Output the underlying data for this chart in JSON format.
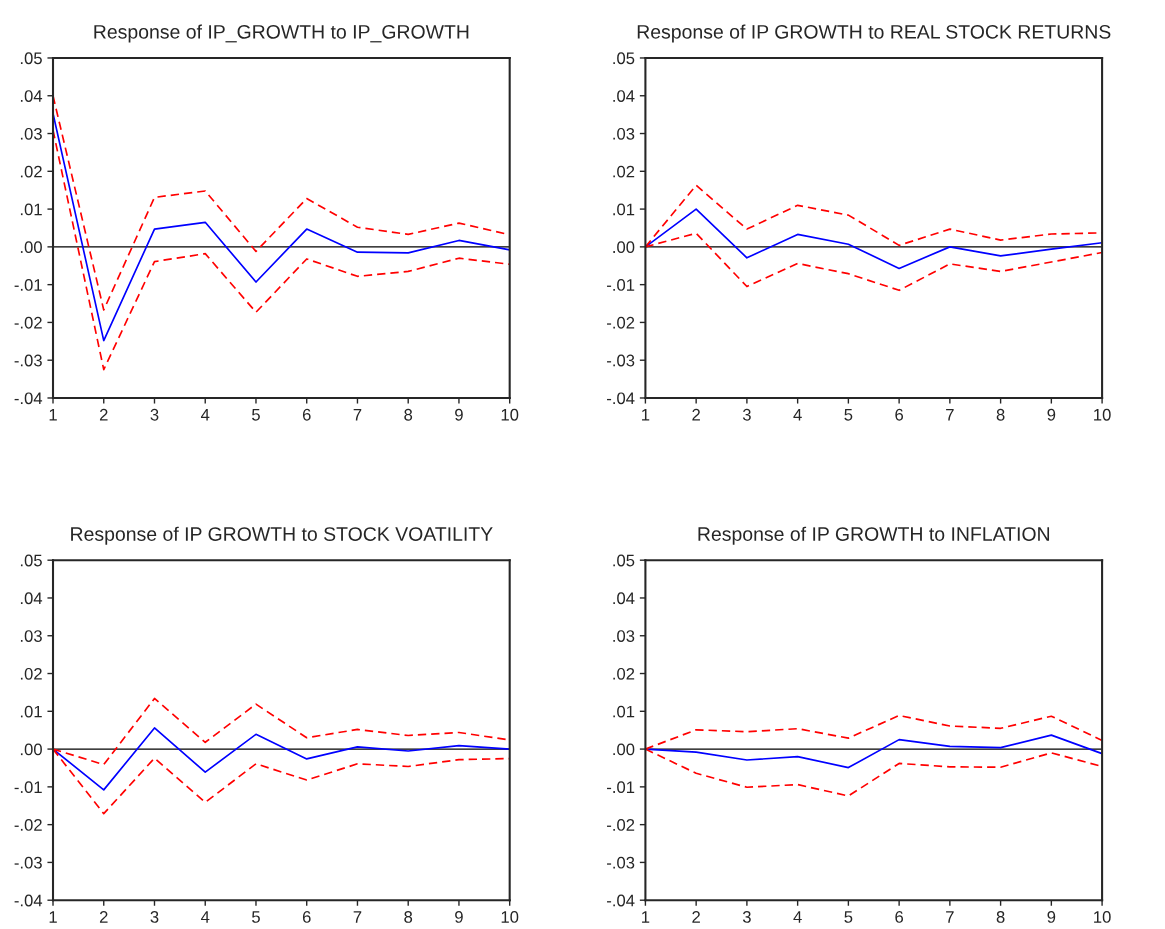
{
  "chart_data": [
    {
      "type": "line",
      "title": "Response of IP_GROWTH to IP_GROWTH",
      "x": [
        1,
        2,
        3,
        4,
        5,
        6,
        7,
        8,
        9,
        10
      ],
      "xlim": [
        1,
        10
      ],
      "xticks": [
        1,
        2,
        3,
        4,
        5,
        6,
        7,
        8,
        9,
        10
      ],
      "ylim": [
        -0.04,
        0.05
      ],
      "yticks": [
        {
          "value": -0.04,
          "label": "-.04"
        },
        {
          "value": -0.03,
          "label": "-.03"
        },
        {
          "value": -0.02,
          "label": "-.02"
        },
        {
          "value": -0.01,
          "label": "-.01"
        },
        {
          "value": 0,
          "label": ".00"
        },
        {
          "value": 0.01,
          "label": ".01"
        },
        {
          "value": 0.02,
          "label": ".02"
        },
        {
          "value": 0.03,
          "label": ".03"
        },
        {
          "value": 0.04,
          "label": ".04"
        },
        {
          "value": 0.05,
          "label": ".05"
        }
      ],
      "grid": false,
      "legend": false,
      "ref_lines": [
        {
          "axis": "y",
          "value": 0,
          "color": "#000000"
        }
      ],
      "series": [
        {
          "color": "#0000ff",
          "line_style": "solid",
          "values": [
            0.0353,
            -0.0248,
            0.0047,
            0.0065,
            -0.0093,
            0.0047,
            -0.0014,
            -0.0016,
            0.0017,
            -0.0008
          ]
        },
        {
          "color": "#ff0000",
          "line_style": "dashed",
          "values": [
            0.04,
            -0.0167,
            0.0131,
            0.0148,
            -0.0012,
            0.0128,
            0.0052,
            0.0033,
            0.0063,
            0.0032
          ]
        },
        {
          "color": "#ff0000",
          "line_style": "dashed",
          "values": [
            0.0309,
            -0.0325,
            -0.0039,
            -0.0018,
            -0.0173,
            -0.0032,
            -0.0078,
            -0.0065,
            -0.003,
            -0.0046
          ]
        }
      ]
    },
    {
      "type": "line",
      "title": "Response of IP GROWTH to REAL STOCK RETURNS",
      "x": [
        1,
        2,
        3,
        4,
        5,
        6,
        7,
        8,
        9,
        10
      ],
      "xlim": [
        1,
        10
      ],
      "xticks": [
        1,
        2,
        3,
        4,
        5,
        6,
        7,
        8,
        9,
        10
      ],
      "ylim": [
        -0.04,
        0.05
      ],
      "yticks": [
        {
          "value": -0.04,
          "label": "-.04"
        },
        {
          "value": -0.03,
          "label": "-.03"
        },
        {
          "value": -0.02,
          "label": "-.02"
        },
        {
          "value": -0.01,
          "label": "-.01"
        },
        {
          "value": 0,
          "label": ".00"
        },
        {
          "value": 0.01,
          "label": ".01"
        },
        {
          "value": 0.02,
          "label": ".02"
        },
        {
          "value": 0.03,
          "label": ".03"
        },
        {
          "value": 0.04,
          "label": ".04"
        },
        {
          "value": 0.05,
          "label": ".05"
        }
      ],
      "grid": false,
      "legend": false,
      "ref_lines": [
        {
          "axis": "y",
          "value": 0,
          "color": "#000000"
        }
      ],
      "series": [
        {
          "color": "#0000ff",
          "line_style": "solid",
          "values": [
            0,
            0.01,
            -0.0029,
            0.0033,
            0.0007,
            -0.0057,
            0,
            -0.0024,
            -0.0006,
            0.0011
          ]
        },
        {
          "color": "#ff0000",
          "line_style": "dashed",
          "values": [
            0,
            0.0163,
            0.0047,
            0.011,
            0.0084,
            0.0004,
            0.0047,
            0.0018,
            0.0034,
            0.0037
          ]
        },
        {
          "color": "#ff0000",
          "line_style": "dashed",
          "values": [
            0,
            0.0036,
            -0.0105,
            -0.0044,
            -0.0071,
            -0.0115,
            -0.0045,
            -0.0065,
            -0.004,
            -0.0015
          ]
        }
      ]
    },
    {
      "type": "line",
      "title": "Response of IP GROWTH to STOCK VOATILITY",
      "x": [
        1,
        2,
        3,
        4,
        5,
        6,
        7,
        8,
        9,
        10
      ],
      "xlim": [
        1,
        10
      ],
      "xticks": [
        1,
        2,
        3,
        4,
        5,
        6,
        7,
        8,
        9,
        10
      ],
      "ylim": [
        -0.04,
        0.05
      ],
      "yticks": [
        {
          "value": -0.04,
          "label": "-.04"
        },
        {
          "value": -0.03,
          "label": "-.03"
        },
        {
          "value": -0.02,
          "label": "-.02"
        },
        {
          "value": -0.01,
          "label": "-.01"
        },
        {
          "value": 0,
          "label": ".00"
        },
        {
          "value": 0.01,
          "label": ".01"
        },
        {
          "value": 0.02,
          "label": ".02"
        },
        {
          "value": 0.03,
          "label": ".03"
        },
        {
          "value": 0.04,
          "label": ".04"
        },
        {
          "value": 0.05,
          "label": ".05"
        }
      ],
      "grid": false,
      "legend": false,
      "ref_lines": [
        {
          "axis": "y",
          "value": 0,
          "color": "#000000"
        }
      ],
      "series": [
        {
          "color": "#0000ff",
          "line_style": "solid",
          "values": [
            0,
            -0.0108,
            0.0056,
            -0.0061,
            0.0039,
            -0.0026,
            0.0006,
            -0.0005,
            0.0009,
            0
          ]
        },
        {
          "color": "#ff0000",
          "line_style": "dashed",
          "values": [
            0,
            -0.0041,
            0.0134,
            0.0018,
            0.0119,
            0.003,
            0.0052,
            0.0036,
            0.0044,
            0.0024
          ]
        },
        {
          "color": "#ff0000",
          "line_style": "dashed",
          "values": [
            0,
            -0.0171,
            -0.0024,
            -0.0141,
            -0.0039,
            -0.0082,
            -0.0039,
            -0.0046,
            -0.0028,
            -0.0025
          ]
        }
      ]
    },
    {
      "type": "line",
      "title": "Response of IP GROWTH to INFLATION",
      "x": [
        1,
        2,
        3,
        4,
        5,
        6,
        7,
        8,
        9,
        10
      ],
      "xlim": [
        1,
        10
      ],
      "xticks": [
        1,
        2,
        3,
        4,
        5,
        6,
        7,
        8,
        9,
        10
      ],
      "ylim": [
        -0.04,
        0.05
      ],
      "yticks": [
        {
          "value": -0.04,
          "label": "-.04"
        },
        {
          "value": -0.03,
          "label": "-.03"
        },
        {
          "value": -0.02,
          "label": "-.02"
        },
        {
          "value": -0.01,
          "label": "-.01"
        },
        {
          "value": 0,
          "label": ".00"
        },
        {
          "value": 0.01,
          "label": ".01"
        },
        {
          "value": 0.02,
          "label": ".02"
        },
        {
          "value": 0.03,
          "label": ".03"
        },
        {
          "value": 0.04,
          "label": ".04"
        },
        {
          "value": 0.05,
          "label": ".05"
        }
      ],
      "grid": false,
      "legend": false,
      "ref_lines": [
        {
          "axis": "y",
          "value": 0,
          "color": "#000000"
        }
      ],
      "series": [
        {
          "color": "#0000ff",
          "line_style": "solid",
          "values": [
            0,
            -0.0008,
            -0.0029,
            -0.002,
            -0.0049,
            0.0025,
            0.0007,
            0.0004,
            0.0037,
            -0.0012
          ]
        },
        {
          "color": "#ff0000",
          "line_style": "dashed",
          "values": [
            0,
            0.0051,
            0.0046,
            0.0054,
            0.0029,
            0.0089,
            0.0061,
            0.0055,
            0.0087,
            0.0023
          ]
        },
        {
          "color": "#ff0000",
          "line_style": "dashed",
          "values": [
            0,
            -0.0064,
            -0.0101,
            -0.0094,
            -0.0124,
            -0.0038,
            -0.0047,
            -0.0048,
            -0.001,
            -0.0046
          ]
        }
      ]
    }
  ]
}
